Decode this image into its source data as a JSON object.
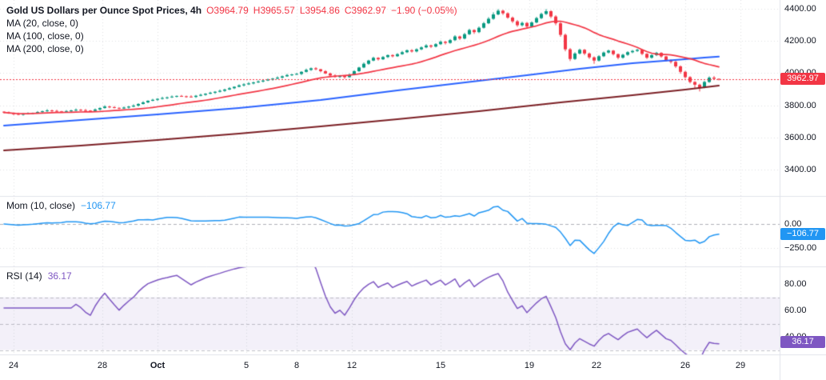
{
  "header": {
    "title": "Gold US Dollars per Ounce Spot Prices, 4h",
    "ohlc": [
      "O3964.79",
      "H3965.57",
      "L3954.86",
      "C3962.97",
      "−1.90 (−0.05%)"
    ],
    "ma_legends": [
      "MA (20, close, 0)",
      "MA (100, close, 0)",
      "MA (200, close, 0)"
    ]
  },
  "panes": {
    "momentum": {
      "label": "Mom (10, close)",
      "value": "−106.77"
    },
    "rsi": {
      "label": "RSI (14)",
      "value": "36.17"
    }
  },
  "badges": {
    "price": "3962.97",
    "momentum": "−106.77",
    "rsi": "36.17"
  },
  "axes": {
    "price_labels": [
      {
        "v": 4400,
        "t": "4400.00"
      },
      {
        "v": 4200,
        "t": "4200.00"
      },
      {
        "v": 4000,
        "t": "4000.00"
      },
      {
        "v": 3800,
        "t": "3800.00"
      },
      {
        "v": 3600,
        "t": "3600.00"
      },
      {
        "v": 3400,
        "t": "3400.00"
      }
    ],
    "mom_labels": [
      {
        "v": 0,
        "t": "0.00"
      },
      {
        "v": -250,
        "t": "−250.00"
      }
    ],
    "rsi_labels": [
      {
        "v": 80,
        "t": "80.00"
      },
      {
        "v": 60,
        "t": "60.00"
      },
      {
        "v": 40,
        "t": "40.00"
      }
    ]
  },
  "chart_data": {
    "type": "candlestick",
    "symbol": "Gold US Dollars per Ounce Spot Prices",
    "interval": "4h",
    "last": {
      "open": 3964.79,
      "high": 3965.57,
      "low": 3954.86,
      "close": 3962.97,
      "change": -1.9,
      "change_pct": -0.05
    },
    "price_ticks": [
      3400,
      3600,
      3800,
      4000,
      4200,
      4400
    ],
    "time_ticks": [
      {
        "i": 2,
        "label": "24"
      },
      {
        "i": 20.5,
        "label": "28"
      },
      {
        "i": 32,
        "label": "Oct",
        "major": true
      },
      {
        "i": 50.5,
        "label": "5"
      },
      {
        "i": 61,
        "label": "8"
      },
      {
        "i": 72.5,
        "label": "12"
      },
      {
        "i": 91,
        "label": "15"
      },
      {
        "i": 109.5,
        "label": "19"
      },
      {
        "i": 123.5,
        "label": "22"
      },
      {
        "i": 142,
        "label": "26"
      },
      {
        "i": 153.5,
        "label": "29"
      }
    ],
    "candles": [
      [
        3760,
        3763,
        3750,
        3755
      ],
      [
        3755,
        3761,
        3747,
        3750
      ],
      [
        3750,
        3754,
        3739,
        3746
      ],
      [
        3746,
        3754,
        3738,
        3742
      ],
      [
        3742,
        3751,
        3736,
        3746
      ],
      [
        3746,
        3756,
        3743,
        3749
      ],
      [
        3749,
        3755,
        3744,
        3752
      ],
      [
        3752,
        3764,
        3749,
        3758
      ],
      [
        3758,
        3767,
        3751,
        3763
      ],
      [
        3763,
        3776,
        3759,
        3768
      ],
      [
        3768,
        3773,
        3759,
        3765
      ],
      [
        3765,
        3772,
        3759,
        3762
      ],
      [
        3762,
        3765,
        3755,
        3760
      ],
      [
        3760,
        3770,
        3757,
        3764
      ],
      [
        3764,
        3772,
        3757,
        3768
      ],
      [
        3768,
        3780,
        3764,
        3772
      ],
      [
        3772,
        3777,
        3764,
        3770
      ],
      [
        3770,
        3777,
        3764,
        3767
      ],
      [
        3767,
        3770,
        3760,
        3765
      ],
      [
        3765,
        3780,
        3762,
        3774
      ],
      [
        3774,
        3787,
        3767,
        3783
      ],
      [
        3783,
        3800,
        3779,
        3792
      ],
      [
        3792,
        3797,
        3782,
        3788
      ],
      [
        3788,
        3795,
        3781,
        3784
      ],
      [
        3784,
        3787,
        3775,
        3780
      ],
      [
        3780,
        3792,
        3777,
        3786
      ],
      [
        3786,
        3796,
        3779,
        3792
      ],
      [
        3792,
        3806,
        3788,
        3798
      ],
      [
        3798,
        3813,
        3792,
        3808
      ],
      [
        3808,
        3825,
        3805,
        3818
      ],
      [
        3818,
        3831,
        3813,
        3828
      ],
      [
        3828,
        3840,
        3825,
        3834
      ],
      [
        3834,
        3844,
        3827,
        3840
      ],
      [
        3840,
        3853,
        3836,
        3845
      ],
      [
        3845,
        3854,
        3839,
        3849
      ],
      [
        3849,
        3861,
        3846,
        3854
      ],
      [
        3854,
        3861,
        3849,
        3858
      ],
      [
        3858,
        3864,
        3853,
        3856
      ],
      [
        3856,
        3860,
        3847,
        3854
      ],
      [
        3854,
        3862,
        3848,
        3852
      ],
      [
        3852,
        3864,
        3846,
        3859
      ],
      [
        3859,
        3872,
        3856,
        3865
      ],
      [
        3865,
        3875,
        3860,
        3872
      ],
      [
        3872,
        3884,
        3869,
        3878
      ],
      [
        3878,
        3888,
        3871,
        3884
      ],
      [
        3884,
        3898,
        3880,
        3890
      ],
      [
        3890,
        3903,
        3884,
        3898
      ],
      [
        3898,
        3913,
        3895,
        3906
      ],
      [
        3906,
        3918,
        3901,
        3915
      ],
      [
        3915,
        3930,
        3912,
        3924
      ],
      [
        3924,
        3937,
        3917,
        3930
      ],
      [
        3930,
        3944,
        3926,
        3936
      ],
      [
        3936,
        3947,
        3930,
        3942
      ],
      [
        3942,
        3955,
        3939,
        3948
      ],
      [
        3948,
        3957,
        3942,
        3954
      ],
      [
        3954,
        3966,
        3951,
        3960
      ],
      [
        3960,
        3970,
        3953,
        3966
      ],
      [
        3966,
        3980,
        3962,
        3972
      ],
      [
        3972,
        3985,
        3966,
        3980
      ],
      [
        3980,
        3995,
        3977,
        3988
      ],
      [
        3988,
        3995,
        3982,
        3992
      ],
      [
        3992,
        4002,
        3989,
        3995
      ],
      [
        3995,
        4012,
        3988,
        4008
      ],
      [
        4008,
        4028,
        4004,
        4020
      ],
      [
        4020,
        4035,
        4014,
        4030
      ],
      [
        4030,
        4037,
        4018,
        4024
      ],
      [
        4024,
        4027,
        4005,
        4012
      ],
      [
        4012,
        4018,
        3994,
        3998
      ],
      [
        3998,
        4003,
        3981,
        3985
      ],
      [
        3985,
        3993,
        3972,
        3976
      ],
      [
        3976,
        3988,
        3970,
        3982
      ],
      [
        3982,
        3986,
        3965,
        3975
      ],
      [
        3975,
        3998,
        3971,
        3990
      ],
      [
        3990,
        4018,
        3986,
        4012
      ],
      [
        4012,
        4039,
        4008,
        4035
      ],
      [
        4035,
        4066,
        4031,
        4058
      ],
      [
        4058,
        4083,
        4052,
        4078
      ],
      [
        4078,
        4102,
        4074,
        4095
      ],
      [
        4095,
        4099,
        4078,
        4086
      ],
      [
        4086,
        4106,
        4082,
        4100
      ],
      [
        4100,
        4116,
        4094,
        4112
      ],
      [
        4112,
        4117,
        4098,
        4105
      ],
      [
        4105,
        4124,
        4101,
        4118
      ],
      [
        4118,
        4138,
        4114,
        4130
      ],
      [
        4130,
        4147,
        4125,
        4142
      ],
      [
        4142,
        4149,
        4128,
        4135
      ],
      [
        4135,
        4154,
        4129,
        4148
      ],
      [
        4148,
        4166,
        4143,
        4160
      ],
      [
        4160,
        4180,
        4155,
        4172
      ],
      [
        4172,
        4177,
        4156,
        4165
      ],
      [
        4165,
        4186,
        4160,
        4180
      ],
      [
        4180,
        4203,
        4176,
        4195
      ],
      [
        4195,
        4200,
        4178,
        4188
      ],
      [
        4188,
        4212,
        4183,
        4205
      ],
      [
        4205,
        4236,
        4200,
        4228
      ],
      [
        4228,
        4233,
        4206,
        4215
      ],
      [
        4215,
        4250,
        4210,
        4242
      ],
      [
        4242,
        4276,
        4237,
        4268
      ],
      [
        4268,
        4273,
        4244,
        4255
      ],
      [
        4255,
        4290,
        4249,
        4282
      ],
      [
        4282,
        4318,
        4277,
        4310
      ],
      [
        4310,
        4348,
        4305,
        4338
      ],
      [
        4338,
        4378,
        4332,
        4365
      ],
      [
        4365,
        4398,
        4360,
        4388
      ],
      [
        4388,
        4394,
        4362,
        4372
      ],
      [
        4372,
        4378,
        4338,
        4345
      ],
      [
        4345,
        4352,
        4312,
        4322
      ],
      [
        4322,
        4330,
        4288,
        4298
      ],
      [
        4298,
        4320,
        4290,
        4312
      ],
      [
        4312,
        4318,
        4280,
        4290
      ],
      [
        4290,
        4322,
        4284,
        4315
      ],
      [
        4315,
        4350,
        4310,
        4342
      ],
      [
        4342,
        4376,
        4336,
        4368
      ],
      [
        4368,
        4398,
        4362,
        4385
      ],
      [
        4385,
        4391,
        4342,
        4352
      ],
      [
        4352,
        4360,
        4298,
        4310
      ],
      [
        4310,
        4318,
        4226,
        4238
      ],
      [
        4238,
        4246,
        4136,
        4148
      ],
      [
        4148,
        4156,
        4075,
        4088
      ],
      [
        4088,
        4130,
        4082,
        4122
      ],
      [
        4122,
        4152,
        4116,
        4145
      ],
      [
        4145,
        4150,
        4112,
        4122
      ],
      [
        4122,
        4128,
        4088,
        4098
      ],
      [
        4098,
        4104,
        4058,
        4078
      ],
      [
        4078,
        4112,
        4072,
        4105
      ],
      [
        4105,
        4134,
        4100,
        4128
      ],
      [
        4128,
        4146,
        4122,
        4140
      ],
      [
        4140,
        4144,
        4110,
        4118
      ],
      [
        4118,
        4122,
        4086,
        4096
      ],
      [
        4096,
        4120,
        4090,
        4114
      ],
      [
        4114,
        4136,
        4108,
        4130
      ],
      [
        4130,
        4144,
        4124,
        4138
      ],
      [
        4138,
        4151,
        4132,
        4145
      ],
      [
        4145,
        4148,
        4112,
        4120
      ],
      [
        4120,
        4124,
        4088,
        4096
      ],
      [
        4096,
        4118,
        4090,
        4112
      ],
      [
        4112,
        4132,
        4106,
        4126
      ],
      [
        4126,
        4130,
        4096,
        4104
      ],
      [
        4104,
        4108,
        4072,
        4080
      ],
      [
        4080,
        4086,
        4060,
        4070
      ],
      [
        4070,
        4076,
        4032,
        4042
      ],
      [
        4042,
        4048,
        3996,
        4008
      ],
      [
        4008,
        4014,
        3966,
        3975
      ],
      [
        3975,
        3981,
        3936,
        3945
      ],
      [
        3945,
        3950,
        3902,
        3928
      ],
      [
        3928,
        3934,
        3886,
        3912
      ],
      [
        3912,
        3952,
        3906,
        3945
      ],
      [
        3945,
        3980,
        3940,
        3972
      ],
      [
        3972,
        3982,
        3958,
        3965
      ],
      [
        3964.79,
        3965.57,
        3954.86,
        3962.97
      ]
    ],
    "overlays": [
      {
        "name": "MA (20, close, 0)",
        "length": 20,
        "color": "#F23645"
      },
      {
        "name": "MA (100, close, 0)",
        "length": 100,
        "color": "#2962FF",
        "anchors": [
          [
            0,
            3674
          ],
          [
            16,
            3709
          ],
          [
            32,
            3743
          ],
          [
            49,
            3783
          ],
          [
            66,
            3833
          ],
          [
            82,
            3893
          ],
          [
            99,
            3952
          ],
          [
            109,
            3987
          ],
          [
            120,
            4027
          ],
          [
            131,
            4062
          ],
          [
            142,
            4087
          ],
          [
            146,
            4097
          ],
          [
            149,
            4103
          ]
        ]
      },
      {
        "name": "MA (200, close, 0)",
        "length": 200,
        "color": "#7B1F24",
        "anchors": [
          [
            0,
            3520
          ],
          [
            16,
            3549
          ],
          [
            32,
            3584
          ],
          [
            49,
            3624
          ],
          [
            66,
            3669
          ],
          [
            82,
            3714
          ],
          [
            99,
            3763
          ],
          [
            116,
            3818
          ],
          [
            131,
            3863
          ],
          [
            142,
            3898
          ],
          [
            149,
            3922
          ]
        ]
      }
    ],
    "indicators": [
      {
        "name": "Mom (10, close)",
        "length": 10,
        "last": -106.77,
        "color": "#2196F3",
        "axis": [
          0,
          -250
        ]
      },
      {
        "name": "RSI (14)",
        "length": 14,
        "last": 36.17,
        "color": "#7E57C2",
        "bands": [
          70,
          50,
          30
        ],
        "axis": [
          80,
          60,
          40
        ]
      }
    ],
    "colors": {
      "up": "#089981",
      "down": "#F23645",
      "grid": "#e8eaef",
      "separator": "#e0e3eb",
      "last_price_line": "#F23645"
    }
  }
}
